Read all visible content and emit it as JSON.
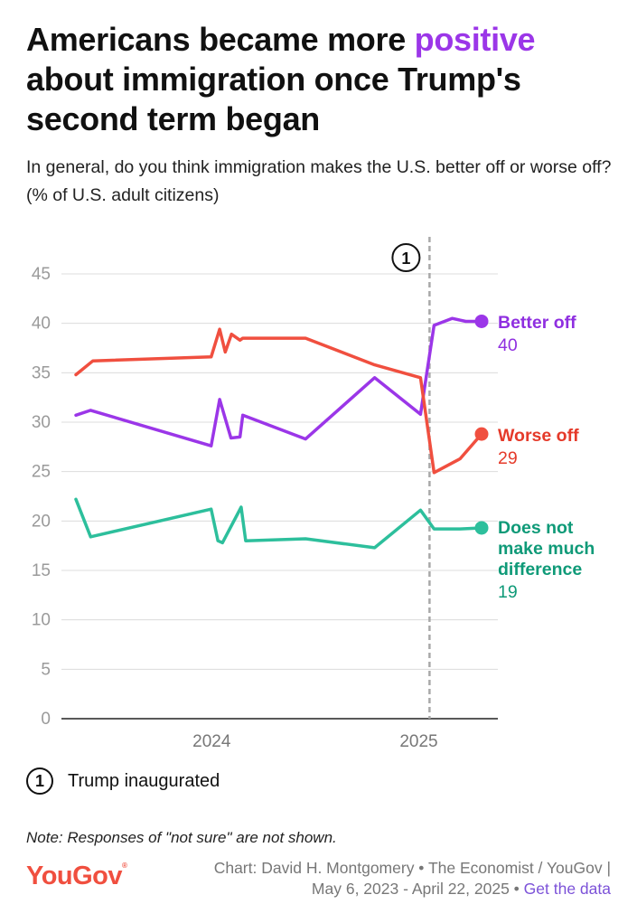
{
  "title": {
    "before": "Americans became more ",
    "highlight": "positive",
    "after": " about immigration once Trump's second term began"
  },
  "subtitle": "In general, do you think immigration makes the U.S. better off or worse off? (% of U.S. adult citizens)",
  "chart_data": {
    "type": "line",
    "x_ticks": [
      {
        "x": "2024-01-01",
        "label": "2024"
      },
      {
        "x": "2025-01-01",
        "label": "2025"
      }
    ],
    "xlim": [
      "2023-05-06",
      "2025-04-22"
    ],
    "ylim": [
      0,
      45
    ],
    "y_ticks": [
      0,
      5,
      10,
      15,
      20,
      25,
      30,
      35,
      40,
      45
    ],
    "grid": true,
    "annotation": {
      "x": "2025-01-20",
      "marker": "1",
      "label": "Trump inaugurated"
    },
    "series": [
      {
        "name": "Better off",
        "end_label": [
          "Better off"
        ],
        "end_value": "40",
        "color": "#9b36e8",
        "points": [
          [
            "2023-05-06",
            30.7
          ],
          [
            "2023-06-01",
            31.2
          ],
          [
            "2023-12-31",
            27.6
          ],
          [
            "2024-01-15",
            32.3
          ],
          [
            "2024-02-04",
            28.4
          ],
          [
            "2024-02-20",
            28.5
          ],
          [
            "2024-02-25",
            30.7
          ],
          [
            "2024-06-15",
            28.3
          ],
          [
            "2024-10-15",
            34.5
          ],
          [
            "2025-01-04",
            30.8
          ],
          [
            "2025-01-28",
            39.8
          ],
          [
            "2025-03-01",
            40.5
          ],
          [
            "2025-03-25",
            40.2
          ],
          [
            "2025-04-22",
            40.2
          ]
        ]
      },
      {
        "name": "Worse off",
        "end_label": [
          "Worse off"
        ],
        "end_value": "29",
        "color": "#f04f3f",
        "points": [
          [
            "2023-05-06",
            34.8
          ],
          [
            "2023-06-05",
            36.2
          ],
          [
            "2023-12-31",
            36.6
          ],
          [
            "2024-01-15",
            39.4
          ],
          [
            "2024-01-25",
            37.1
          ],
          [
            "2024-02-05",
            38.9
          ],
          [
            "2024-02-20",
            38.3
          ],
          [
            "2024-02-25",
            38.5
          ],
          [
            "2024-06-15",
            38.5
          ],
          [
            "2024-10-15",
            35.8
          ],
          [
            "2025-01-04",
            34.5
          ],
          [
            "2025-01-28",
            24.9
          ],
          [
            "2025-03-15",
            26.3
          ],
          [
            "2025-04-22",
            28.8
          ]
        ]
      },
      {
        "name": "Does not make much difference",
        "end_label": [
          "Does not",
          "make much",
          "difference"
        ],
        "end_value": "19",
        "color": "#2dbf9c",
        "points": [
          [
            "2023-05-06",
            22.2
          ],
          [
            "2023-06-01",
            18.4
          ],
          [
            "2023-12-31",
            21.2
          ],
          [
            "2024-01-12",
            18.0
          ],
          [
            "2024-01-20",
            17.8
          ],
          [
            "2024-02-22",
            21.4
          ],
          [
            "2024-03-01",
            18.0
          ],
          [
            "2024-06-15",
            18.2
          ],
          [
            "2024-10-15",
            17.3
          ],
          [
            "2025-01-04",
            21.1
          ],
          [
            "2025-01-28",
            19.2
          ],
          [
            "2025-03-15",
            19.2
          ],
          [
            "2025-04-22",
            19.3
          ]
        ]
      }
    ]
  },
  "legend": {
    "marker": "1",
    "text": "Trump inaugurated"
  },
  "note": "Note: Responses of \"not sure\" are not shown.",
  "logo": "YouGov",
  "credit": {
    "line1": "Chart: David H. Montgomery • The Economist / YouGov |",
    "line2": "May 6, 2023 - April 22, 2025 • ",
    "link": "Get the data"
  }
}
